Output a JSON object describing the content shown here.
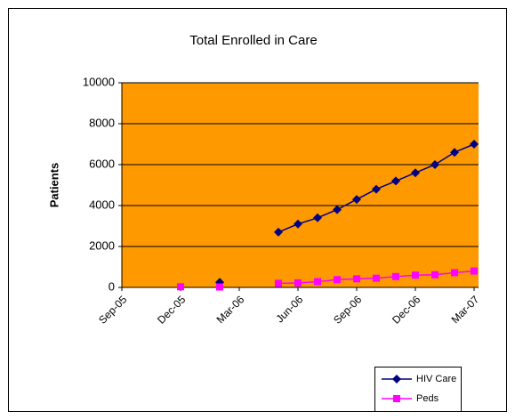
{
  "chart_data": {
    "type": "line",
    "title": "Total Enrolled in Care",
    "y_label": "Patients",
    "categories": [
      "Sep-05",
      null,
      null,
      "Dec-05",
      null,
      null,
      "Mar-06",
      null,
      null,
      "Jun-06",
      null,
      null,
      "Sep-06",
      null,
      null,
      "Dec-06",
      null,
      null,
      "Mar-07"
    ],
    "series": [
      {
        "name": "HIV Care",
        "color": "#000080",
        "marker": "diamond",
        "values": [
          null,
          null,
          null,
          null,
          null,
          250,
          null,
          null,
          2700,
          3100,
          3400,
          3800,
          4300,
          4800,
          5200,
          5600,
          6000,
          6600,
          7000
        ]
      },
      {
        "name": "Peds",
        "color": "#ff00ff",
        "marker": "square",
        "values": [
          null,
          null,
          null,
          30,
          null,
          20,
          null,
          null,
          200,
          220,
          280,
          380,
          420,
          450,
          530,
          600,
          620,
          720,
          800
        ]
      }
    ],
    "ylim": [
      0,
      10000
    ],
    "yticks": [
      0,
      2000,
      4000,
      6000,
      8000,
      10000
    ],
    "grid": true,
    "plot_background": "#ff9900",
    "legend": "bottom-right"
  }
}
